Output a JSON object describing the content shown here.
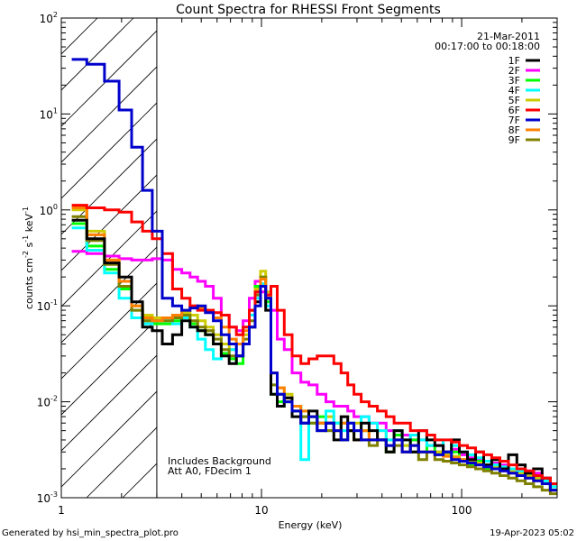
{
  "chart_data": {
    "type": "line",
    "title": "Count Spectra for RHESSI Front Segments",
    "xlabel": "Energy (keV)",
    "ylabel": "counts cm⁻² s⁻¹ keV⁻¹",
    "ylabel_parts": [
      "counts cm",
      "-2",
      " s",
      "-1",
      " keV",
      "-1"
    ],
    "x_scale": "log",
    "y_scale": "log",
    "xlim": [
      1,
      300
    ],
    "ylim": [
      0.001,
      100
    ],
    "x_tick_labels": [
      {
        "value": 1,
        "label": "1"
      },
      {
        "value": 10,
        "label": "10"
      },
      {
        "value": 100,
        "label": "100"
      }
    ],
    "y_tick_labels": [
      {
        "value": 0.001,
        "mant": "10",
        "exp": "-3"
      },
      {
        "value": 0.01,
        "mant": "10",
        "exp": "-2"
      },
      {
        "value": 0.1,
        "mant": "10",
        "exp": "-1"
      },
      {
        "value": 1,
        "mant": "10",
        "exp": "0"
      },
      {
        "value": 10,
        "mant": "10",
        "exp": "1"
      },
      {
        "value": 100,
        "mant": "10",
        "exp": "2"
      }
    ],
    "hatched_region_keV": [
      1,
      3
    ],
    "date": "21-Mar-2011",
    "time_range": "00:17:00 to 00:18:00",
    "annotations": [
      "Includes Background",
      "Att A0, FDecim 1"
    ],
    "footer_left": "Generated by hsi_min_spectra_plot.pro",
    "footer_right": "19-Apr-2023 05:02",
    "energy_keV": [
      1.2,
      1.5,
      1.8,
      2.1,
      2.4,
      2.7,
      3.0,
      3.4,
      3.8,
      4.2,
      4.6,
      5.0,
      5.5,
      6.0,
      6.6,
      7.2,
      7.8,
      8.4,
      9.0,
      9.6,
      10.2,
      10.8,
      11.5,
      12.5,
      13.5,
      15,
      16.5,
      18,
      20,
      22,
      24,
      26,
      28,
      30,
      33,
      36,
      40,
      44,
      48,
      53,
      58,
      64,
      70,
      77,
      85,
      93,
      102,
      112,
      123,
      135,
      148,
      163,
      180,
      198,
      218,
      240,
      265,
      290
    ],
    "series": [
      {
        "name": "1F",
        "color": "#000000",
        "values": [
          0.78,
          0.5,
          0.28,
          0.2,
          0.11,
          0.06,
          0.055,
          0.04,
          0.05,
          0.07,
          0.06,
          0.055,
          0.05,
          0.04,
          0.03,
          0.025,
          0.03,
          0.04,
          0.06,
          0.11,
          0.16,
          0.09,
          0.012,
          0.009,
          0.011,
          0.007,
          0.006,
          0.008,
          0.005,
          0.006,
          0.004,
          0.007,
          0.005,
          0.004,
          0.006,
          0.005,
          0.004,
          0.003,
          0.005,
          0.004,
          0.003,
          0.005,
          0.004,
          0.0035,
          0.003,
          0.004,
          0.003,
          0.0025,
          0.003,
          0.0022,
          0.0025,
          0.002,
          0.0028,
          0.0022,
          0.0018,
          0.002,
          0.0016,
          0.0012
        ]
      },
      {
        "name": "2F",
        "color": "#ff00ff",
        "values": [
          0.37,
          0.35,
          0.33,
          0.31,
          0.3,
          0.3,
          0.31,
          0.3,
          0.24,
          0.22,
          0.2,
          0.18,
          0.16,
          0.12,
          0.08,
          0.06,
          0.055,
          0.07,
          0.12,
          0.18,
          0.14,
          0.13,
          0.09,
          0.045,
          0.035,
          0.02,
          0.016,
          0.015,
          0.012,
          0.01,
          0.009,
          0.009,
          0.008,
          0.007,
          0.007,
          0.006,
          0.006,
          0.005,
          0.005,
          0.0045,
          0.004,
          0.004,
          0.0035,
          0.0035,
          0.003,
          0.0032,
          0.0028,
          0.0026,
          0.0025,
          0.0024,
          0.0023,
          0.0022,
          0.002,
          0.002,
          0.0019,
          0.0018,
          0.0016,
          0.0014
        ]
      },
      {
        "name": "3F",
        "color": "#00ff00",
        "values": [
          0.72,
          0.42,
          0.24,
          0.15,
          0.09,
          0.07,
          0.065,
          0.065,
          0.07,
          0.075,
          0.065,
          0.055,
          0.05,
          0.04,
          0.032,
          0.028,
          0.025,
          0.04,
          0.09,
          0.16,
          0.2,
          0.11,
          0.012,
          0.01,
          0.011,
          0.008,
          0.007,
          0.006,
          0.007,
          0.005,
          0.006,
          0.004,
          0.005,
          0.004,
          0.005,
          0.004,
          0.004,
          0.003,
          0.0045,
          0.0035,
          0.004,
          0.003,
          0.0035,
          0.003,
          0.0028,
          0.003,
          0.0025,
          0.0022,
          0.0024,
          0.002,
          0.0022,
          0.002,
          0.0019,
          0.0017,
          0.0018,
          0.0016,
          0.0015,
          0.0013
        ]
      },
      {
        "name": "4F",
        "color": "#00ffff",
        "values": [
          0.65,
          0.38,
          0.22,
          0.12,
          0.075,
          0.065,
          0.07,
          0.07,
          0.065,
          0.075,
          0.06,
          0.045,
          0.035,
          0.028,
          0.03,
          0.035,
          0.04,
          0.06,
          0.08,
          0.12,
          0.17,
          0.1,
          0.015,
          0.012,
          0.01,
          0.009,
          0.0025,
          0.007,
          0.006,
          0.008,
          0.006,
          0.005,
          0.006,
          0.005,
          0.007,
          0.006,
          0.005,
          0.004,
          0.005,
          0.004,
          0.0045,
          0.004,
          0.0035,
          0.004,
          0.003,
          0.0035,
          0.003,
          0.0028,
          0.0026,
          0.0024,
          0.0022,
          0.0021,
          0.002,
          0.0019,
          0.0018,
          0.0017,
          0.0015,
          0.0013
        ]
      },
      {
        "name": "5F",
        "color": "#cccc00",
        "values": [
          1.0,
          0.6,
          0.3,
          0.18,
          0.1,
          0.08,
          0.075,
          0.075,
          0.08,
          0.085,
          0.08,
          0.07,
          0.06,
          0.05,
          0.04,
          0.035,
          0.04,
          0.05,
          0.08,
          0.15,
          0.23,
          0.14,
          0.02,
          0.014,
          0.012,
          0.009,
          0.008,
          0.007,
          0.006,
          0.007,
          0.005,
          0.006,
          0.005,
          0.006,
          0.005,
          0.004,
          0.005,
          0.004,
          0.004,
          0.0035,
          0.0035,
          0.003,
          0.003,
          0.003,
          0.0028,
          0.0027,
          0.0025,
          0.0024,
          0.0023,
          0.0022,
          0.0021,
          0.002,
          0.0019,
          0.0018,
          0.0017,
          0.0016,
          0.0015,
          0.0013
        ]
      },
      {
        "name": "6F",
        "color": "#ff0000",
        "values": [
          1.12,
          1.05,
          1.0,
          0.95,
          0.75,
          0.6,
          0.5,
          0.35,
          0.15,
          0.12,
          0.1,
          0.09,
          0.09,
          0.085,
          0.08,
          0.06,
          0.05,
          0.06,
          0.09,
          0.14,
          0.16,
          0.13,
          0.16,
          0.09,
          0.05,
          0.03,
          0.025,
          0.028,
          0.03,
          0.03,
          0.025,
          0.02,
          0.015,
          0.012,
          0.01,
          0.009,
          0.008,
          0.007,
          0.006,
          0.006,
          0.005,
          0.005,
          0.0045,
          0.004,
          0.004,
          0.0038,
          0.0035,
          0.0033,
          0.003,
          0.0028,
          0.0026,
          0.0024,
          0.0022,
          0.002,
          0.0019,
          0.0017,
          0.0016,
          0.0014
        ]
      },
      {
        "name": "7F",
        "color": "#0000cc",
        "values": [
          37.0,
          33.0,
          22.0,
          11.0,
          4.5,
          1.6,
          0.6,
          0.12,
          0.1,
          0.09,
          0.095,
          0.1,
          0.085,
          0.07,
          0.05,
          0.04,
          0.03,
          0.04,
          0.06,
          0.1,
          0.16,
          0.12,
          0.02,
          0.012,
          0.01,
          0.008,
          0.006,
          0.007,
          0.005,
          0.006,
          0.005,
          0.004,
          0.006,
          0.005,
          0.004,
          0.004,
          0.004,
          0.0035,
          0.004,
          0.003,
          0.0035,
          0.003,
          0.003,
          0.0028,
          0.003,
          0.0025,
          0.0024,
          0.0023,
          0.0022,
          0.0021,
          0.002,
          0.0019,
          0.0018,
          0.0017,
          0.0016,
          0.0015,
          0.0014,
          0.0012
        ]
      },
      {
        "name": "8F",
        "color": "#ff8000",
        "values": [
          1.05,
          0.55,
          0.3,
          0.18,
          0.1,
          0.075,
          0.07,
          0.075,
          0.08,
          0.09,
          0.1,
          0.095,
          0.09,
          0.075,
          0.06,
          0.045,
          0.04,
          0.055,
          0.09,
          0.14,
          0.19,
          0.12,
          0.02,
          0.014,
          0.011,
          0.009,
          0.008,
          0.007,
          0.006,
          0.006,
          0.005,
          0.006,
          0.005,
          0.004,
          0.005,
          0.004,
          0.004,
          0.0035,
          0.004,
          0.003,
          0.0035,
          0.003,
          0.003,
          0.0028,
          0.0027,
          0.0026,
          0.0025,
          0.0023,
          0.0022,
          0.0021,
          0.002,
          0.0019,
          0.0018,
          0.0017,
          0.0016,
          0.0015,
          0.0014,
          0.0012
        ]
      },
      {
        "name": "9F",
        "color": "#808000",
        "values": [
          0.85,
          0.48,
          0.27,
          0.16,
          0.09,
          0.07,
          0.07,
          0.07,
          0.075,
          0.08,
          0.07,
          0.06,
          0.055,
          0.045,
          0.035,
          0.03,
          0.03,
          0.045,
          0.07,
          0.13,
          0.2,
          0.12,
          0.015,
          0.012,
          0.01,
          0.008,
          0.007,
          0.006,
          0.006,
          0.005,
          0.005,
          0.004,
          0.005,
          0.004,
          0.004,
          0.0035,
          0.004,
          0.003,
          0.0035,
          0.003,
          0.003,
          0.0025,
          0.003,
          0.0025,
          0.0024,
          0.0023,
          0.0022,
          0.0021,
          0.002,
          0.0019,
          0.0018,
          0.0017,
          0.0016,
          0.0015,
          0.0014,
          0.0013,
          0.0012,
          0.0011
        ]
      }
    ]
  }
}
